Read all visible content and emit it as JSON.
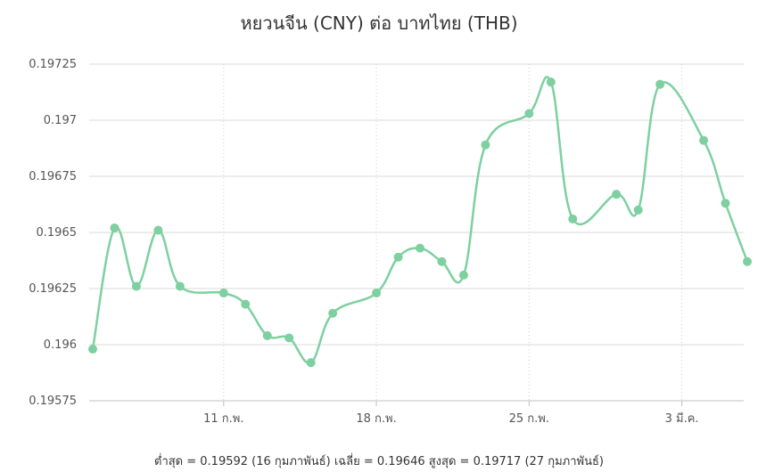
{
  "chart_data": {
    "type": "line",
    "title": "หยวนจีน (CNY) ต่อ บาทไทย (THB)",
    "xlabel": "",
    "ylabel": "",
    "ylim": [
      0.19575,
      0.19725
    ],
    "yticks": [
      0.19575,
      0.196,
      0.19625,
      0.1965,
      0.19675,
      0.197,
      0.19725
    ],
    "ytick_labels": [
      "0.19575",
      "0.196",
      "0.19625",
      "0.1965",
      "0.19675",
      "0.197",
      "0.19725"
    ],
    "xlim": [
      "2025-02-05",
      "2025-03-07"
    ],
    "xticks": [
      "2025-02-11",
      "2025-02-18",
      "2025-02-25",
      "2025-03-04"
    ],
    "xtick_labels": [
      "11 ก.พ.",
      "18 ก.พ.",
      "25 ก.พ.",
      "3 มี.ค."
    ],
    "grid": {
      "horizontal": true,
      "vertical": "dotted"
    },
    "legend": "none",
    "line_color": "#7ed0a0",
    "series": [
      {
        "points": [
          {
            "x": "2025-02-05",
            "y": 0.19598
          },
          {
            "x": "2025-02-06",
            "y": 0.19652
          },
          {
            "x": "2025-02-07",
            "y": 0.19626
          },
          {
            "x": "2025-02-08",
            "y": 0.19651
          },
          {
            "x": "2025-02-09",
            "y": 0.19626
          },
          {
            "x": "2025-02-11",
            "y": 0.19623
          },
          {
            "x": "2025-02-12",
            "y": 0.19618
          },
          {
            "x": "2025-02-13",
            "y": 0.19604
          },
          {
            "x": "2025-02-14",
            "y": 0.19603
          },
          {
            "x": "2025-02-15",
            "y": 0.19592
          },
          {
            "x": "2025-02-16",
            "y": 0.19614
          },
          {
            "x": "2025-02-18",
            "y": 0.19623
          },
          {
            "x": "2025-02-19",
            "y": 0.19639
          },
          {
            "x": "2025-02-20",
            "y": 0.19643
          },
          {
            "x": "2025-02-21",
            "y": 0.19637
          },
          {
            "x": "2025-02-22",
            "y": 0.19631
          },
          {
            "x": "2025-02-23",
            "y": 0.19689
          },
          {
            "x": "2025-02-25",
            "y": 0.19703
          },
          {
            "x": "2025-02-26",
            "y": 0.19717
          },
          {
            "x": "2025-02-27",
            "y": 0.19656
          },
          {
            "x": "2025-03-01",
            "y": 0.19667
          },
          {
            "x": "2025-03-02",
            "y": 0.1966
          },
          {
            "x": "2025-03-03",
            "y": 0.19716
          },
          {
            "x": "2025-03-05",
            "y": 0.19691
          },
          {
            "x": "2025-03-06",
            "y": 0.19663
          },
          {
            "x": "2025-03-07",
            "y": 0.19637
          }
        ]
      }
    ]
  },
  "stats": {
    "text": "ต่ำสุด = 0.19592 (16 กุมภาพันธ์) เฉลี่ย = 0.19646 สูงสุด = 0.19717 (27 กุมภาพันธ์)"
  },
  "colors": {
    "line": "#7ed0a0",
    "grid": "#d8d8d8",
    "axis": "#c0c0c0",
    "text": "#333333"
  }
}
